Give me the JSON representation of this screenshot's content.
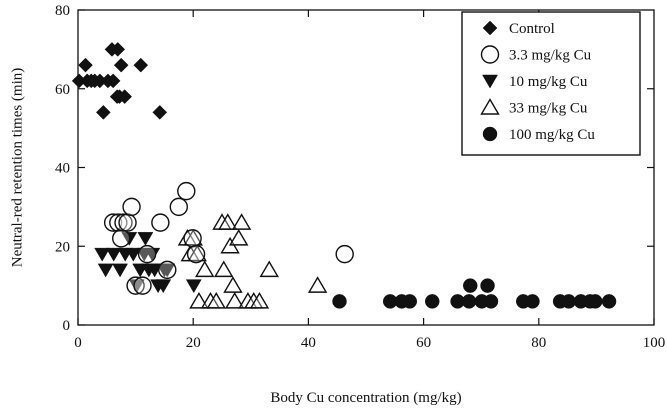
{
  "chart_data": {
    "type": "scatter",
    "title": "",
    "xlabel": "Body Cu concentration (mg/kg)",
    "ylabel": "Neutral-red retention times (min)",
    "xlim": [
      0,
      100
    ],
    "ylim": [
      0,
      80
    ],
    "xticks": [
      0,
      20,
      40,
      60,
      80,
      100
    ],
    "yticks": [
      0,
      20,
      40,
      60,
      80
    ],
    "grid": false,
    "legend_position": "top-right",
    "series": [
      {
        "name": "Control",
        "marker": "diamond",
        "x": [
          0.2,
          1.3,
          1.6,
          2.3,
          2.9,
          3.8,
          4.4,
          5.2,
          5.9,
          6.1,
          6.8,
          6.9,
          7.2,
          7.5,
          8.1,
          10.9,
          14.2
        ],
        "y": [
          62,
          66,
          62,
          62,
          62,
          62,
          54,
          62,
          70,
          62,
          58,
          70,
          58,
          66,
          58,
          66,
          54
        ]
      },
      {
        "name": "3.3 mg/kg Cu",
        "marker": "open-circle",
        "x": [
          6.1,
          7.0,
          7.5,
          7.9,
          8.6,
          9.3,
          10.0,
          11.2,
          12.0,
          14.3,
          15.5,
          17.5,
          18.8,
          19.9,
          20.5,
          46.3
        ],
        "y": [
          26,
          26,
          22,
          26,
          26,
          30,
          10,
          10,
          18,
          26,
          14,
          30,
          34,
          22,
          18,
          18
        ]
      },
      {
        "name": "10 mg/kg Cu",
        "marker": "filled-triangle-down",
        "x": [
          4.2,
          4.8,
          6.2,
          7.3,
          8.2,
          8.9,
          9.6,
          10.2,
          10.8,
          11.5,
          11.7,
          12.3,
          12.9,
          13.3,
          13.9,
          14.8,
          15.0,
          15.5,
          20.1
        ],
        "y": [
          18,
          14,
          18,
          14,
          18,
          22,
          18,
          10,
          14,
          18,
          22,
          14,
          18,
          14,
          10,
          10,
          14,
          14,
          10
        ]
      },
      {
        "name": "33 mg/kg Cu",
        "marker": "open-triangle-up",
        "x": [
          19.0,
          19.5,
          20.0,
          20.7,
          21.0,
          22.0,
          23.0,
          24.0,
          25.0,
          25.3,
          26.0,
          26.4,
          26.9,
          27.2,
          27.9,
          28.4,
          29.5,
          30.5,
          31.5,
          33.2,
          41.6
        ],
        "y": [
          22,
          18,
          22,
          18,
          6,
          14,
          6,
          6,
          26,
          14,
          26,
          20,
          10,
          6,
          22,
          26,
          6,
          6,
          6,
          14,
          10
        ]
      },
      {
        "name": "100 mg/kg Cu",
        "marker": "filled-circle",
        "x": [
          45.4,
          54.2,
          56.2,
          57.6,
          61.5,
          65.9,
          67.9,
          68.1,
          70.1,
          71.1,
          71.7,
          77.3,
          78.9,
          83.7,
          85.2,
          87.3,
          88.9,
          89.8,
          92.2
        ],
        "y": [
          6,
          6,
          6,
          6,
          6,
          6,
          6,
          10,
          6,
          10,
          6,
          6,
          6,
          6,
          6,
          6,
          6,
          6,
          6
        ]
      }
    ]
  }
}
